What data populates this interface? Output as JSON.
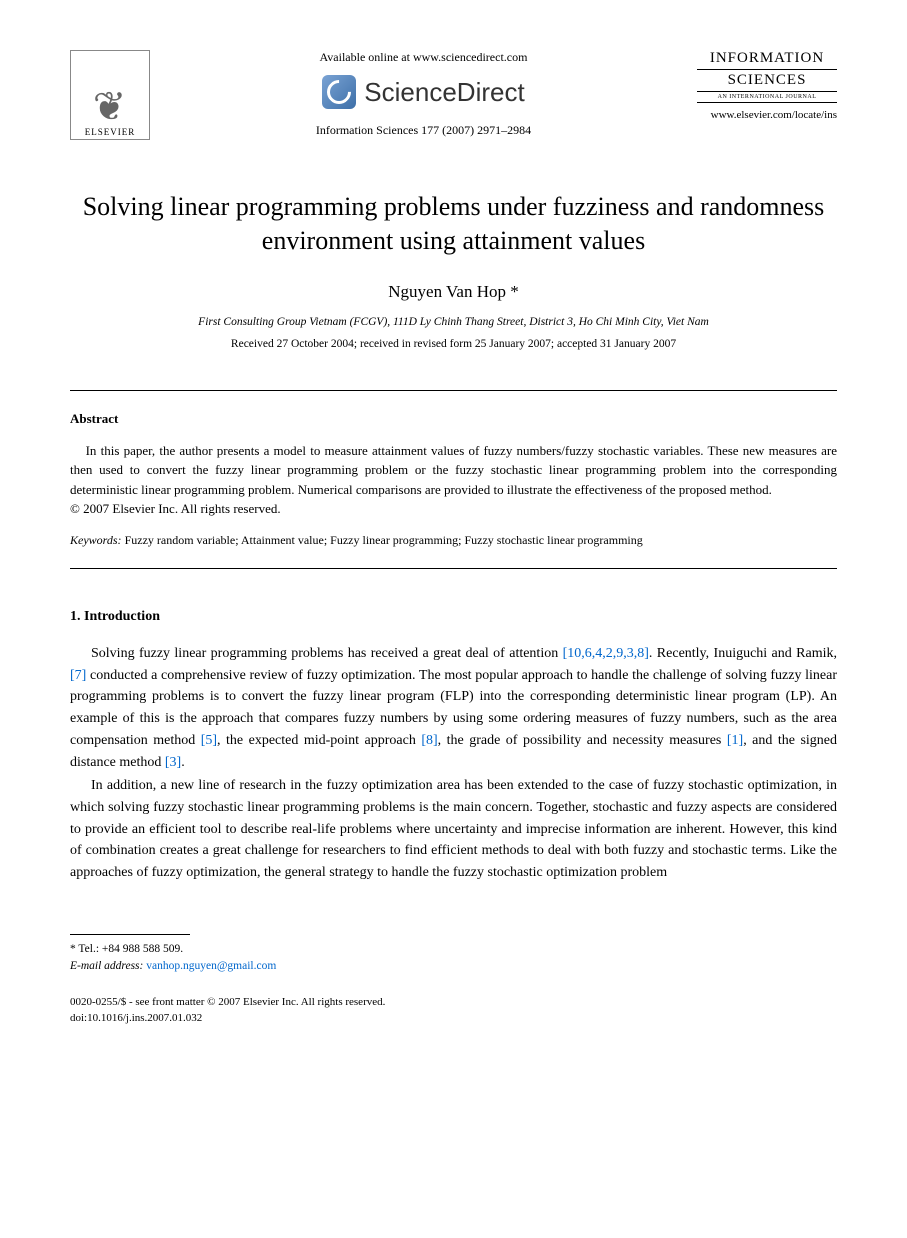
{
  "header": {
    "available_online": "Available online at www.sciencedirect.com",
    "sciencedirect": "ScienceDirect",
    "journal_ref": "Information Sciences 177 (2007) 2971–2984",
    "elsevier_label": "ELSEVIER",
    "journal_name_line1": "INFORMATION",
    "journal_name_line2": "SCIENCES",
    "journal_sub": "AN INTERNATIONAL JOURNAL",
    "journal_url": "www.elsevier.com/locate/ins"
  },
  "title": "Solving linear programming problems under fuzziness and randomness environment using attainment values",
  "author": "Nguyen Van Hop *",
  "affiliation": "First Consulting Group Vietnam (FCGV), 111D Ly Chinh Thang Street, District 3, Ho Chi Minh City, Viet Nam",
  "dates": "Received 27 October 2004; received in revised form 25 January 2007; accepted 31 January 2007",
  "abstract": {
    "heading": "Abstract",
    "text": "In this paper, the author presents a model to measure attainment values of fuzzy numbers/fuzzy stochastic variables. These new measures are then used to convert the fuzzy linear programming problem or the fuzzy stochastic linear programming problem into the corresponding deterministic linear programming problem. Numerical comparisons are provided to illustrate the effectiveness of the proposed method.",
    "copyright": "© 2007 Elsevier Inc. All rights reserved."
  },
  "keywords": {
    "label": "Keywords:",
    "text": " Fuzzy random variable; Attainment value; Fuzzy linear programming; Fuzzy stochastic linear programming"
  },
  "section1": {
    "heading": "1. Introduction",
    "para1_a": "Solving fuzzy linear programming problems has received a great deal of attention ",
    "para1_ref1": "[10,6,4,2,9,3,8]",
    "para1_b": ". Recently, Inuiguchi and Ramik, ",
    "para1_ref2": "[7]",
    "para1_c": " conducted a comprehensive review of fuzzy optimization. The most popular approach to handle the challenge of solving fuzzy linear programming problems is to convert the fuzzy linear program (FLP) into the corresponding deterministic linear program (LP). An example of this is the approach that compares fuzzy numbers by using some ordering measures of fuzzy numbers, such as the area compensation method ",
    "para1_ref3": "[5]",
    "para1_d": ", the expected mid-point approach ",
    "para1_ref4": "[8]",
    "para1_e": ", the grade of possibility and necessity measures ",
    "para1_ref5": "[1]",
    "para1_f": ", and the signed distance method ",
    "para1_ref6": "[3]",
    "para1_g": ".",
    "para2": "In addition, a new line of research in the fuzzy optimization area has been extended to the case of fuzzy stochastic optimization, in which solving fuzzy stochastic linear programming problems is the main concern. Together, stochastic and fuzzy aspects are considered to provide an efficient tool to describe real-life problems where uncertainty and imprecise information are inherent. However, this kind of combination creates a great challenge for researchers to find efficient methods to deal with both fuzzy and stochastic terms. Like the approaches of fuzzy optimization, the general strategy to handle the fuzzy stochastic optimization problem"
  },
  "footnote": {
    "tel_label": "* Tel.: ",
    "tel": "+84 988 588 509.",
    "email_label": "E-mail address:",
    "email": "vanhop.nguyen@gmail.com"
  },
  "bottom": {
    "line1": "0020-0255/$ - see front matter © 2007 Elsevier Inc. All rights reserved.",
    "line2": "doi:10.1016/j.ins.2007.01.032"
  },
  "colors": {
    "link": "#0066cc",
    "text": "#000000",
    "background": "#ffffff"
  }
}
